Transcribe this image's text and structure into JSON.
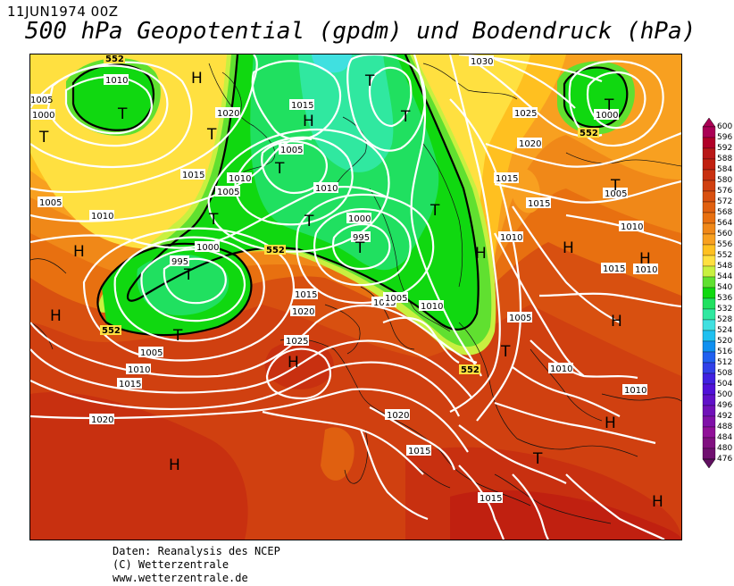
{
  "header": {
    "date": "11JUN1974 00Z",
    "title": "500 hPa Geopotential (gpdm) und Bodendruck (hPa)"
  },
  "legend": {
    "levels": [
      "600",
      "596",
      "592",
      "588",
      "584",
      "580",
      "576",
      "572",
      "568",
      "564",
      "560",
      "556",
      "552",
      "548",
      "544",
      "540",
      "536",
      "532",
      "528",
      "524",
      "520",
      "516",
      "512",
      "508",
      "504",
      "500",
      "496",
      "492",
      "488",
      "484",
      "480",
      "476"
    ],
    "colors": [
      "#aa0055",
      "#b00028",
      "#b81818",
      "#c02010",
      "#c83010",
      "#d04010",
      "#d85010",
      "#e06010",
      "#e87010",
      "#f08818",
      "#f8a020",
      "#ffc020",
      "#ffe040",
      "#c8f040",
      "#60e030",
      "#10d810",
      "#20e060",
      "#30e8a0",
      "#40e0e0",
      "#20c0f0",
      "#1090f0",
      "#2060f0",
      "#3040e8",
      "#4020e0",
      "#5010d8",
      "#6010c8",
      "#7010b8",
      "#8010a8",
      "#901098",
      "#801080",
      "#701070",
      "#601060"
    ]
  },
  "map": {
    "pressure_labels": [
      "1010",
      "1005",
      "1000",
      "1020",
      "1015",
      "1005",
      "1010",
      "1000",
      "1015",
      "1005",
      "1010",
      "995",
      "1005",
      "1000",
      "995",
      "1010",
      "1015",
      "1020",
      "1005",
      "1010",
      "1015",
      "1025",
      "1020",
      "1015",
      "1020",
      "1030",
      "1025",
      "1020",
      "1015",
      "1015",
      "1010",
      "1005",
      "1010",
      "1015",
      "1000",
      "1005",
      "1010",
      "1015",
      "1010",
      "1005",
      "1010",
      "1010",
      "1015"
    ],
    "height_labels": [
      "552",
      "552",
      "552",
      "552",
      "552"
    ],
    "centers": [
      {
        "t": "T"
      },
      {
        "t": "T"
      },
      {
        "t": "H"
      },
      {
        "t": "T"
      },
      {
        "t": "H"
      },
      {
        "t": "T"
      },
      {
        "t": "T"
      },
      {
        "t": "T"
      },
      {
        "t": "T"
      },
      {
        "t": "T"
      },
      {
        "t": "T"
      },
      {
        "t": "T"
      },
      {
        "t": "H"
      },
      {
        "t": "H"
      },
      {
        "t": "T"
      },
      {
        "t": "H"
      },
      {
        "t": "T"
      },
      {
        "t": "T"
      },
      {
        "t": "H"
      },
      {
        "t": "H"
      },
      {
        "t": "H"
      },
      {
        "t": "H"
      },
      {
        "t": "T"
      },
      {
        "t": "H"
      },
      {
        "t": "T"
      },
      {
        "t": "H"
      },
      {
        "t": "H"
      },
      {
        "t": "T"
      }
    ]
  },
  "footer": {
    "line1": "Daten: Reanalysis des NCEP",
    "line2": "(C) Wetterzentrale",
    "line3": "www.wetterzentrale.de"
  }
}
